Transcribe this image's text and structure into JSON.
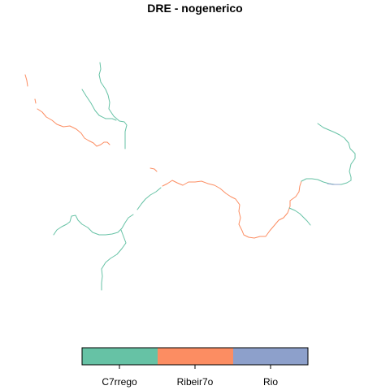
{
  "title": "DRE - nogenerico",
  "legend": {
    "classes": [
      {
        "label": "C7rrego",
        "color": "#66c2a5"
      },
      {
        "label": "Ribeir7o",
        "color": "#fc8d62"
      },
      {
        "label": "Rio",
        "color": "#8da0cb"
      }
    ]
  }
}
